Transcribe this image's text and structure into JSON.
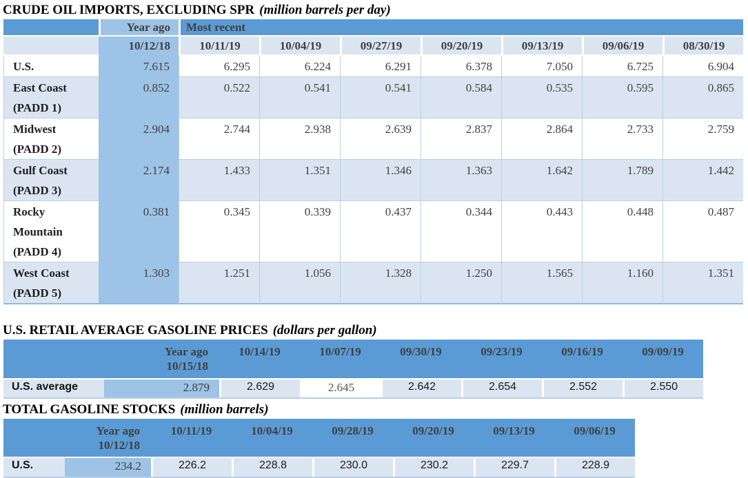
{
  "tables": [
    {
      "title": "CRUDE OIL IMPORTS, EXCLUDING SPR",
      "title_note": "(million barrels per day)",
      "year_ago_label": "Year ago",
      "most_recent_label": "Most recent",
      "year_ago_date": "10/12/18",
      "dates": [
        "10/11/19",
        "10/04/19",
        "09/27/19",
        "09/20/19",
        "09/13/19",
        "09/06/19",
        "08/30/19"
      ],
      "rows": [
        {
          "label": "U.S.",
          "year_ago": "7.615",
          "values": [
            "6.295",
            "6.224",
            "6.291",
            "6.378",
            "7.050",
            "6.725",
            "6.904"
          ]
        },
        {
          "label": "East Coast (PADD 1)",
          "year_ago": "0.852",
          "values": [
            "0.522",
            "0.541",
            "0.541",
            "0.584",
            "0.535",
            "0.595",
            "0.865"
          ]
        },
        {
          "label": "Midwest (PADD 2)",
          "year_ago": "2.904",
          "values": [
            "2.744",
            "2.938",
            "2.639",
            "2.837",
            "2.864",
            "2.733",
            "2.759"
          ]
        },
        {
          "label": "Gulf Coast (PADD 3)",
          "year_ago": "2.174",
          "values": [
            "1.433",
            "1.351",
            "1.346",
            "1.363",
            "1.642",
            "1.789",
            "1.442"
          ]
        },
        {
          "label": "Rocky Mountain (PADD 4)",
          "year_ago": "0.381",
          "values": [
            "0.345",
            "0.339",
            "0.437",
            "0.344",
            "0.443",
            "0.448",
            "0.487"
          ]
        },
        {
          "label": "West Coast (PADD 5)",
          "year_ago": "1.303",
          "values": [
            "1.251",
            "1.056",
            "1.328",
            "1.250",
            "1.565",
            "1.160",
            "1.351"
          ]
        }
      ]
    },
    {
      "title": "U.S. RETAIL AVERAGE GASOLINE PRICES",
      "title_note": "(dollars per gallon)",
      "year_ago_label": "Year ago",
      "year_ago_date": "10/15/18",
      "dates": [
        "10/14/19",
        "10/07/19",
        "09/30/19",
        "09/23/19",
        "09/16/19",
        "09/09/19"
      ],
      "rows": [
        {
          "label": "U.S. average",
          "year_ago": "2.879",
          "values": [
            {
              "v": "2.629"
            },
            {
              "v": "2.645",
              "muted": true
            },
            {
              "v": "2.642"
            },
            {
              "v": "2.654"
            },
            {
              "v": "2.552"
            },
            {
              "v": "2.550"
            }
          ]
        }
      ]
    },
    {
      "title": "TOTAL GASOLINE STOCKS",
      "title_note": "(million barrels)",
      "year_ago_label": "Year ago",
      "year_ago_date": "10/12/18",
      "dates": [
        "10/11/19",
        "10/04/19",
        "09/28/19",
        "09/20/19",
        "09/13/19",
        "09/06/19"
      ],
      "rows": [
        {
          "label": "U.S.",
          "year_ago": "234.2",
          "values": [
            {
              "v": "226.2"
            },
            {
              "v": "228.8"
            },
            {
              "v": "230.0"
            },
            {
              "v": "230.2"
            },
            {
              "v": "229.7"
            },
            {
              "v": "228.9"
            }
          ]
        }
      ]
    }
  ],
  "colors": {
    "header_blue": "#5b9bd5",
    "year_ago_blue": "#9dc3e6",
    "light_row_blue": "#dbe5f1",
    "border_blue": "#b8cfe5",
    "header_text": "#404040"
  }
}
